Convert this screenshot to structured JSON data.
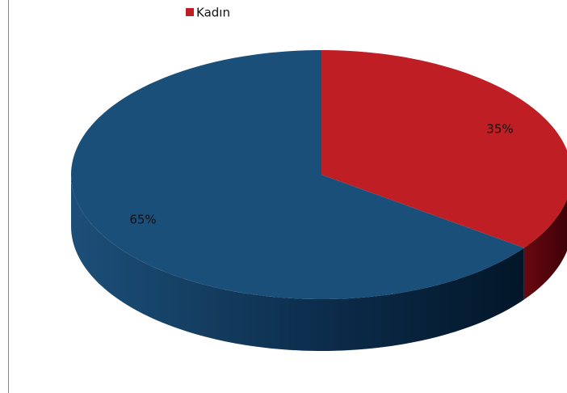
{
  "chart_data": {
    "type": "pie3d",
    "categories": [
      "Kadın",
      null
    ],
    "values": [
      35,
      65
    ],
    "value_labels": [
      "35%",
      "65%"
    ],
    "colors": [
      "#be1e24",
      "#1a4f7a"
    ],
    "legend": "top"
  }
}
